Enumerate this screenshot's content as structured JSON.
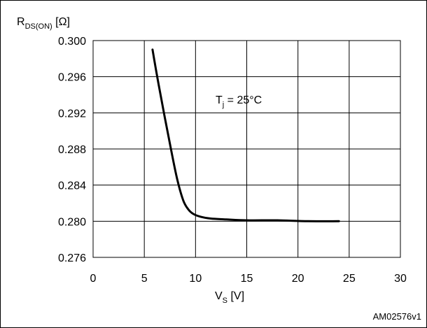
{
  "chart_data": {
    "type": "line",
    "ylabel_main": "R",
    "ylabel_sub": "DS(ON)",
    "ylabel_unit": " [Ω]",
    "xlabel_main": "V",
    "xlabel_sub": "S",
    "xlabel_unit": " [V]",
    "annotation_main": "T",
    "annotation_sub": "j",
    "annotation_rest": " = 25°C",
    "figure_code": "AM02576v1",
    "xlim": [
      0,
      30
    ],
    "ylim": [
      0.276,
      0.3
    ],
    "xticks": [
      "0",
      "5",
      "10",
      "15",
      "20",
      "25",
      "30"
    ],
    "yticks": [
      "0.276",
      "0.280",
      "0.284",
      "0.288",
      "0.292",
      "0.296",
      "0.300"
    ],
    "grid": true,
    "series": [
      {
        "x": [
          5.8,
          6.4,
          7.0,
          7.6,
          8.2,
          8.8,
          9.3,
          9.8,
          10.5,
          11.5,
          13,
          15,
          18,
          21,
          24
        ],
        "y": [
          0.299,
          0.2951,
          0.2915,
          0.288,
          0.2847,
          0.2823,
          0.2813,
          0.2808,
          0.2805,
          0.2803,
          0.2802,
          0.2801,
          0.2801,
          0.28,
          0.28
        ]
      }
    ]
  }
}
